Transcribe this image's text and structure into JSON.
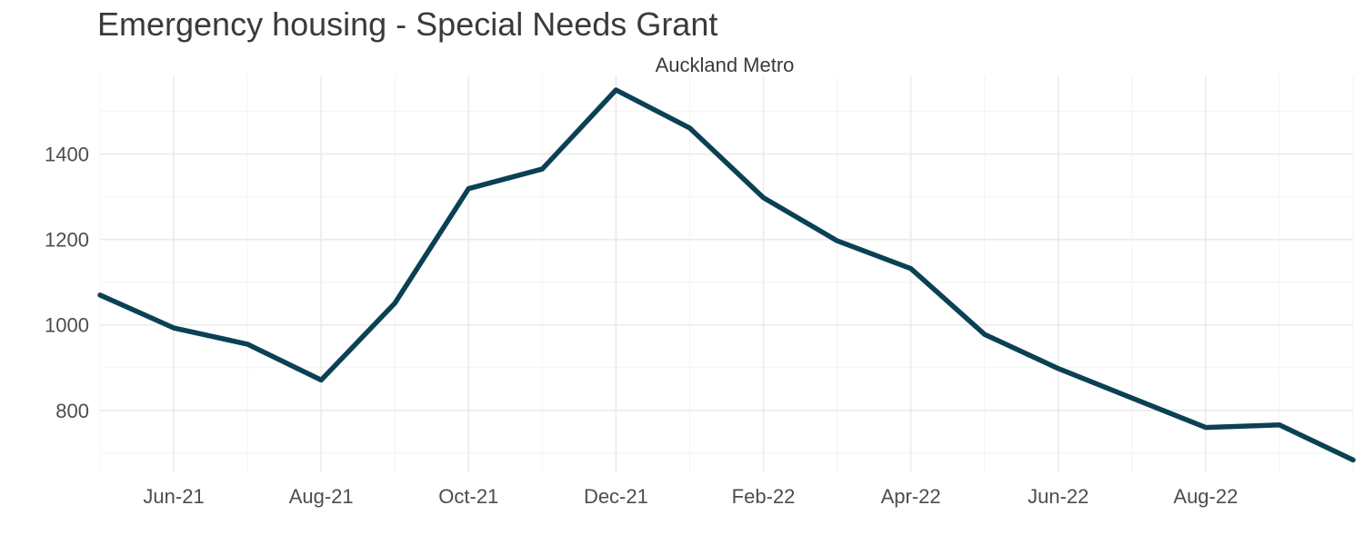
{
  "chart_data": {
    "type": "line",
    "title": "Emergency housing - Special Needs Grant",
    "facet_label": "Auckland Metro",
    "xlabel": "",
    "ylabel": "",
    "x_tick_labels": [
      "Jun-21",
      "Aug-21",
      "Oct-21",
      "Dec-21",
      "Feb-22",
      "Apr-22",
      "Jun-22",
      "Aug-22"
    ],
    "y_ticks": [
      800,
      1000,
      1200,
      1400
    ],
    "ylim": [
      655,
      1582
    ],
    "grid": true,
    "line_color": "#0b4055",
    "series": [
      {
        "x": [
          "2021-05",
          "2021-06",
          "2021-07",
          "2021-08",
          "2021-09",
          "2021-10",
          "2021-11",
          "2021-12",
          "2022-01",
          "2022-02",
          "2022-03",
          "2022-04",
          "2022-05",
          "2022-06",
          "2022-07",
          "2022-08",
          "2022-09",
          "2022-10"
        ],
        "values": [
          1070,
          993,
          955,
          871,
          1051,
          1319,
          1365,
          1550,
          1461,
          1298,
          1197,
          1132,
          978,
          898,
          829,
          760,
          766,
          684
        ]
      }
    ]
  }
}
